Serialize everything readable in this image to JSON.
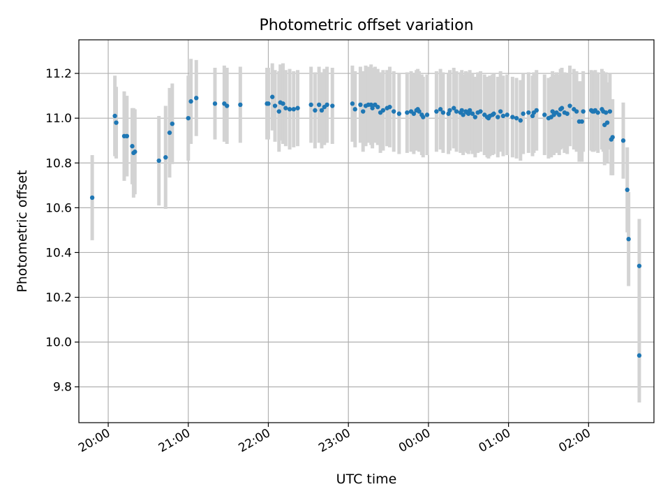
{
  "chart_data": {
    "type": "scatter",
    "title": "Photometric offset variation",
    "xlabel": "UTC time",
    "ylabel": "Photometric offset",
    "x_tick_labels": [
      "20:00",
      "21:00",
      "22:00",
      "23:00",
      "00:00",
      "01:00",
      "02:00"
    ],
    "y_tick_labels": [
      "9.8",
      "10.0",
      "10.2",
      "10.4",
      "10.6",
      "10.8",
      "11.0",
      "11.2"
    ],
    "x_range": [
      "19:38",
      "02:49"
    ],
    "ylim": [
      9.64,
      11.35
    ],
    "grid": true,
    "colors": {
      "point": "#1f77b4",
      "errorbar": "#d3d3d3",
      "grid": "#b0b0b0"
    },
    "series": [
      {
        "x": [
          "19:48",
          "20:05",
          "20:06",
          "20:12",
          "20:14",
          "20:18",
          "20:19",
          "20:20",
          "20:38",
          "20:43",
          "20:46",
          "20:48",
          "21:00",
          "21:02",
          "21:06",
          "21:20",
          "21:27",
          "21:29",
          "21:39",
          "21:59",
          "22:00",
          "22:03",
          "22:05",
          "22:08",
          "22:09",
          "22:11",
          "22:13",
          "22:16",
          "22:19",
          "22:22",
          "22:32",
          "22:35",
          "22:38",
          "22:40",
          "22:42",
          "22:44",
          "22:48",
          "23:03",
          "23:05",
          "23:09",
          "23:11",
          "23:13",
          "23:15",
          "23:17",
          "23:18",
          "23:20",
          "23:22",
          "23:24",
          "23:26",
          "23:29",
          "23:31",
          "23:34",
          "23:38",
          "23:44",
          "23:47",
          "23:49",
          "23:51",
          "23:52",
          "23:53",
          "23:55",
          "23:56",
          "23:59",
          "00:06",
          "00:09",
          "00:11",
          "00:15",
          "00:16",
          "00:19",
          "00:21",
          "00:24",
          "00:25",
          "00:26",
          "00:28",
          "00:29",
          "00:30",
          "00:31",
          "00:33",
          "00:35",
          "00:37",
          "00:39",
          "00:42",
          "00:44",
          "00:45",
          "00:46",
          "00:48",
          "00:49",
          "00:52",
          "00:54",
          "00:56",
          "00:59",
          "01:03",
          "01:06",
          "01:09",
          "01:11",
          "01:15",
          "01:18",
          "01:19",
          "01:21",
          "01:27",
          "01:30",
          "01:32",
          "01:33",
          "01:34",
          "01:36",
          "01:38",
          "01:39",
          "01:40",
          "01:42",
          "01:44",
          "01:46",
          "01:49",
          "01:51",
          "01:53",
          "01:55",
          "01:56",
          "02:02",
          "02:03",
          "02:04",
          "02:05",
          "02:07",
          "02:10",
          "02:11",
          "02:12",
          "02:13",
          "02:14",
          "02:16",
          "02:17",
          "02:18",
          "02:26",
          "02:29",
          "02:30",
          "02:38"
        ],
        "y": [
          10.645,
          11.01,
          10.98,
          10.92,
          10.92,
          10.875,
          10.845,
          10.85,
          10.81,
          10.825,
          10.935,
          10.975,
          11.0,
          11.075,
          11.09,
          11.065,
          11.065,
          11.055,
          11.06,
          11.065,
          11.065,
          11.095,
          11.055,
          11.03,
          11.07,
          11.065,
          11.045,
          11.04,
          11.04,
          11.045,
          11.06,
          11.035,
          11.06,
          11.035,
          11.05,
          11.06,
          11.055,
          11.065,
          11.04,
          11.06,
          11.03,
          11.055,
          11.06,
          11.06,
          11.045,
          11.06,
          11.05,
          11.025,
          11.035,
          11.045,
          11.05,
          11.03,
          11.02,
          11.025,
          11.03,
          11.02,
          11.035,
          11.04,
          11.03,
          11.015,
          11.005,
          11.015,
          11.03,
          11.04,
          11.025,
          11.02,
          11.035,
          11.045,
          11.03,
          11.025,
          11.035,
          11.015,
          11.03,
          11.025,
          11.02,
          11.035,
          11.02,
          11.005,
          11.025,
          11.03,
          11.015,
          11.005,
          11.0,
          11.01,
          11.015,
          11.02,
          11.005,
          11.03,
          11.01,
          11.015,
          11.005,
          11.0,
          10.99,
          11.02,
          11.025,
          11.01,
          11.025,
          11.035,
          11.015,
          11.0,
          11.005,
          11.03,
          11.015,
          11.025,
          11.015,
          11.04,
          11.045,
          11.025,
          11.02,
          11.055,
          11.04,
          11.03,
          10.985,
          10.985,
          11.03,
          11.035,
          11.03,
          11.03,
          11.035,
          11.025,
          11.04,
          11.03,
          10.97,
          11.025,
          10.98,
          11.03,
          10.905,
          10.915,
          10.9,
          10.68,
          10.46,
          10.34
        ],
        "yerr": [
          0.19,
          0.18,
          0.16,
          0.2,
          0.18,
          0.17,
          0.2,
          0.19,
          0.2,
          0.23,
          0.2,
          0.18,
          0.19,
          0.19,
          0.17,
          0.16,
          0.17,
          0.17,
          0.17,
          0.16,
          0.16,
          0.15,
          0.16,
          0.18,
          0.17,
          0.18,
          0.17,
          0.18,
          0.17,
          0.17,
          0.17,
          0.17,
          0.17,
          0.17,
          0.17,
          0.17,
          0.17,
          0.17,
          0.17,
          0.17,
          0.18,
          0.18,
          0.17,
          0.18,
          0.18,
          0.17,
          0.17,
          0.18,
          0.18,
          0.17,
          0.18,
          0.18,
          0.18,
          0.18,
          0.18,
          0.18,
          0.18,
          0.18,
          0.18,
          0.18,
          0.18,
          0.18,
          0.18,
          0.18,
          0.18,
          0.18,
          0.18,
          0.18,
          0.18,
          0.18,
          0.18,
          0.18,
          0.18,
          0.18,
          0.18,
          0.18,
          0.18,
          0.18,
          0.18,
          0.18,
          0.18,
          0.18,
          0.18,
          0.18,
          0.18,
          0.18,
          0.18,
          0.18,
          0.18,
          0.18,
          0.18,
          0.18,
          0.18,
          0.18,
          0.18,
          0.18,
          0.18,
          0.18,
          0.18,
          0.18,
          0.18,
          0.18,
          0.18,
          0.18,
          0.18,
          0.18,
          0.18,
          0.18,
          0.18,
          0.18,
          0.18,
          0.18,
          0.18,
          0.18,
          0.18,
          0.18,
          0.18,
          0.18,
          0.18,
          0.18,
          0.18,
          0.18,
          0.18,
          0.18,
          0.18,
          0.17,
          0.16,
          0.17,
          0.17,
          0.19,
          0.21,
          0.21
        ]
      }
    ],
    "extra_points": [
      {
        "x": "02:38",
        "y": 9.94,
        "yerr": 0.21
      }
    ]
  }
}
